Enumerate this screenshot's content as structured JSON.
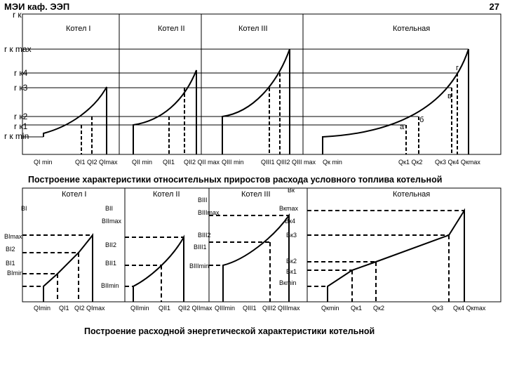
{
  "header": {
    "left": "МЭИ каф. ЭЭП",
    "right": "27"
  },
  "top_diagram": {
    "y_axis_top": "r к",
    "sections": [
      "Котел I",
      "Котел II",
      "Котел III",
      "Котельная"
    ],
    "y_labels": [
      "r к max",
      "r к4",
      "r к3",
      "r к2",
      "r к1",
      "r к min"
    ],
    "point_labels": [
      "г",
      "в",
      "б",
      "а"
    ],
    "x_labels": [
      "QI min",
      "QI1 QI2 QImax",
      "QII min",
      "QII1",
      "QII2 QII max",
      "QIII min",
      "QIII1 QIII2 QIII max",
      "Qк min",
      "Qк1 Qк2",
      "Qк3 Qк4 Qкmax"
    ],
    "caption": "Построение характеристики относительных приростов расхода условного топлива котельной"
  },
  "bottom_diagram": {
    "sections": [
      "Котел I",
      "Котел II",
      "Котел III",
      "Котельная"
    ],
    "labels_boiler1": [
      "BI",
      "BImax",
      "BI2",
      "BI1",
      "BImin"
    ],
    "labels_boiler2": [
      "BII",
      "BIImax",
      "BII2",
      "BII1",
      "BIImin"
    ],
    "labels_boiler3": [
      "BIII",
      "BIIImax",
      "BIII2",
      "BIII1",
      "BIIImin"
    ],
    "labels_plant": [
      "Bк",
      "Bкmax",
      "Bк4",
      "Bк3",
      "Bк2",
      "Bк1",
      "Bкmin"
    ],
    "x_labels": [
      "QImin",
      "QI1",
      "QI2 QImax",
      "QIImin",
      "QII1",
      "QII2 QIImax",
      "QIIImin",
      "QIII1",
      "QIII2 QIIImax",
      "Qкmin",
      "Qк1",
      "Qк2",
      "Qк3",
      "Qк4 Qкmax"
    ],
    "caption": "Построение расходной энергетической характеристики котельной"
  }
}
